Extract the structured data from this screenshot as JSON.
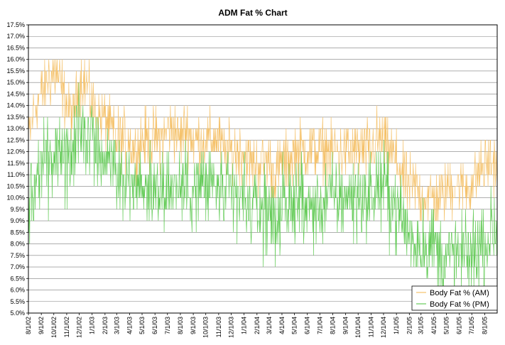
{
  "chart_data": {
    "type": "line",
    "title": "ADM Fat % Chart",
    "xlabel": "",
    "ylabel": "",
    "ylim": [
      5.0,
      17.5
    ],
    "y_ticks": [
      "5.0%",
      "5.5%",
      "6.0%",
      "6.5%",
      "7.0%",
      "7.5%",
      "8.0%",
      "8.5%",
      "9.0%",
      "9.5%",
      "10.0%",
      "10.5%",
      "11.0%",
      "11.5%",
      "12.0%",
      "12.5%",
      "13.0%",
      "13.5%",
      "14.0%",
      "14.5%",
      "15.0%",
      "15.5%",
      "16.0%",
      "16.5%",
      "17.0%",
      "17.5%"
    ],
    "x_ticks": [
      "8/1/02",
      "9/1/02",
      "10/1/02",
      "11/1/02",
      "12/1/02",
      "1/1/03",
      "2/1/03",
      "3/1/03",
      "4/1/03",
      "5/1/03",
      "6/1/03",
      "7/1/03",
      "8/1/03",
      "9/1/03",
      "10/1/03",
      "11/1/03",
      "12/1/03",
      "1/1/04",
      "2/1/04",
      "3/1/04",
      "4/1/04",
      "5/1/04",
      "6/1/04",
      "7/1/04",
      "8/1/04",
      "9/1/04",
      "10/1/04",
      "11/1/04",
      "12/1/04",
      "1/1/05",
      "2/1/05",
      "3/1/05",
      "4/1/05",
      "5/1/05",
      "6/1/05",
      "7/1/05",
      "8/1/05"
    ],
    "x_range": [
      "8/1/02",
      "8/31/05"
    ],
    "grid": true,
    "legend_position": "bottom-right",
    "series": [
      {
        "name": "Body Fat % (AM)",
        "color": "#f5c26b",
        "points": [
          [
            "8/1/02",
            12.5
          ],
          [
            "8/15/02",
            14.0
          ],
          [
            "9/1/02",
            14.5
          ],
          [
            "9/15/02",
            15.0
          ],
          [
            "10/1/02",
            15.5
          ],
          [
            "10/15/02",
            15.0
          ],
          [
            "11/1/02",
            14.0
          ],
          [
            "11/15/02",
            13.5
          ],
          [
            "12/1/02",
            15.0
          ],
          [
            "12/15/02",
            15.0
          ],
          [
            "1/1/03",
            14.0
          ],
          [
            "1/15/03",
            13.5
          ],
          [
            "2/1/03",
            13.5
          ],
          [
            "2/15/03",
            13.0
          ],
          [
            "3/1/03",
            12.5
          ],
          [
            "3/15/03",
            12.5
          ],
          [
            "4/1/03",
            12.5
          ],
          [
            "4/15/03",
            12.0
          ],
          [
            "5/1/03",
            12.5
          ],
          [
            "5/15/03",
            12.5
          ],
          [
            "6/1/03",
            12.5
          ],
          [
            "6/15/03",
            12.5
          ],
          [
            "7/1/03",
            13.0
          ],
          [
            "7/15/03",
            13.0
          ],
          [
            "8/1/03",
            12.5
          ],
          [
            "8/15/03",
            13.0
          ],
          [
            "9/1/03",
            12.5
          ],
          [
            "9/15/03",
            12.5
          ],
          [
            "10/1/03",
            12.5
          ],
          [
            "10/15/03",
            12.5
          ],
          [
            "11/1/03",
            12.5
          ],
          [
            "11/15/03",
            12.0
          ],
          [
            "12/1/03",
            12.0
          ],
          [
            "12/15/03",
            12.0
          ],
          [
            "1/1/04",
            12.0
          ],
          [
            "1/15/04",
            11.5
          ],
          [
            "2/1/04",
            11.5
          ],
          [
            "2/15/04",
            11.5
          ],
          [
            "3/1/04",
            11.5
          ],
          [
            "3/15/04",
            11.0
          ],
          [
            "4/1/04",
            11.5
          ],
          [
            "4/15/04",
            11.5
          ],
          [
            "5/1/04",
            12.0
          ],
          [
            "5/15/04",
            12.0
          ],
          [
            "6/1/04",
            12.0
          ],
          [
            "6/15/04",
            12.0
          ],
          [
            "7/1/04",
            12.0
          ],
          [
            "7/15/04",
            12.0
          ],
          [
            "8/1/04",
            12.0
          ],
          [
            "8/15/04",
            12.0
          ],
          [
            "9/1/04",
            12.0
          ],
          [
            "9/15/04",
            12.0
          ],
          [
            "10/1/04",
            12.0
          ],
          [
            "10/15/04",
            12.0
          ],
          [
            "11/1/04",
            12.0
          ],
          [
            "11/15/04",
            12.5
          ],
          [
            "12/1/04",
            12.5
          ],
          [
            "12/15/04",
            12.0
          ],
          [
            "1/1/05",
            11.5
          ],
          [
            "1/15/05",
            11.0
          ],
          [
            "2/1/05",
            10.5
          ],
          [
            "2/15/05",
            10.5
          ],
          [
            "3/1/05",
            10.0
          ],
          [
            "3/15/05",
            10.0
          ],
          [
            "4/1/05",
            10.0
          ],
          [
            "4/15/05",
            10.0
          ],
          [
            "5/1/05",
            10.5
          ],
          [
            "5/15/05",
            10.5
          ],
          [
            "6/1/05",
            10.5
          ],
          [
            "6/15/05",
            10.5
          ],
          [
            "7/1/05",
            10.5
          ],
          [
            "7/15/05",
            11.0
          ],
          [
            "8/1/05",
            11.5
          ],
          [
            "8/15/05",
            11.5
          ],
          [
            "8/31/05",
            11.5
          ]
        ],
        "noise": 0.8
      },
      {
        "name": "Body Fat % (PM)",
        "color": "#66cc5a",
        "points": [
          [
            "8/1/02",
            9.5
          ],
          [
            "8/15/02",
            10.5
          ],
          [
            "9/1/02",
            11.5
          ],
          [
            "9/15/02",
            11.5
          ],
          [
            "10/1/02",
            12.0
          ],
          [
            "10/15/02",
            12.0
          ],
          [
            "11/1/02",
            11.5
          ],
          [
            "11/15/02",
            12.0
          ],
          [
            "12/1/02",
            13.0
          ],
          [
            "12/15/02",
            13.0
          ],
          [
            "1/1/03",
            12.5
          ],
          [
            "1/15/03",
            12.0
          ],
          [
            "2/1/03",
            12.0
          ],
          [
            "2/15/03",
            11.5
          ],
          [
            "3/1/03",
            11.0
          ],
          [
            "3/15/03",
            11.0
          ],
          [
            "4/1/03",
            10.5
          ],
          [
            "4/15/03",
            10.5
          ],
          [
            "5/1/03",
            10.5
          ],
          [
            "5/15/03",
            10.5
          ],
          [
            "6/1/03",
            10.5
          ],
          [
            "6/15/03",
            10.5
          ],
          [
            "7/1/03",
            10.5
          ],
          [
            "7/15/03",
            10.5
          ],
          [
            "8/1/03",
            10.5
          ],
          [
            "8/15/03",
            10.5
          ],
          [
            "9/1/03",
            10.5
          ],
          [
            "9/15/03",
            10.5
          ],
          [
            "10/1/03",
            10.5
          ],
          [
            "10/15/03",
            10.5
          ],
          [
            "11/1/03",
            10.5
          ],
          [
            "11/15/03",
            10.0
          ],
          [
            "12/1/03",
            10.0
          ],
          [
            "12/15/03",
            10.0
          ],
          [
            "1/1/04",
            10.0
          ],
          [
            "1/15/04",
            9.5
          ],
          [
            "2/1/04",
            9.5
          ],
          [
            "2/15/04",
            9.5
          ],
          [
            "3/1/04",
            9.5
          ],
          [
            "3/15/04",
            9.0
          ],
          [
            "4/1/04",
            9.5
          ],
          [
            "4/15/04",
            9.5
          ],
          [
            "5/1/04",
            10.0
          ],
          [
            "5/15/04",
            10.0
          ],
          [
            "6/1/04",
            9.5
          ],
          [
            "6/15/04",
            9.5
          ],
          [
            "7/1/04",
            9.5
          ],
          [
            "7/15/04",
            10.0
          ],
          [
            "8/1/04",
            10.0
          ],
          [
            "8/15/04",
            10.0
          ],
          [
            "9/1/04",
            10.0
          ],
          [
            "9/15/04",
            10.0
          ],
          [
            "10/1/04",
            10.0
          ],
          [
            "10/15/04",
            10.0
          ],
          [
            "11/1/04",
            10.0
          ],
          [
            "11/15/04",
            10.5
          ],
          [
            "12/1/04",
            10.5
          ],
          [
            "12/15/04",
            10.0
          ],
          [
            "1/1/05",
            9.5
          ],
          [
            "1/15/05",
            9.0
          ],
          [
            "2/1/05",
            8.5
          ],
          [
            "2/15/05",
            8.0
          ],
          [
            "3/1/05",
            8.0
          ],
          [
            "3/15/05",
            8.0
          ],
          [
            "4/1/05",
            8.0
          ],
          [
            "4/15/05",
            7.5
          ],
          [
            "5/1/05",
            7.5
          ],
          [
            "5/15/05",
            7.5
          ],
          [
            "6/1/05",
            7.5
          ],
          [
            "6/15/05",
            7.5
          ],
          [
            "7/1/05",
            7.5
          ],
          [
            "7/15/05",
            8.0
          ],
          [
            "8/1/05",
            8.0
          ],
          [
            "8/15/05",
            8.5
          ],
          [
            "8/31/05",
            8.5
          ]
        ],
        "noise": 1.1
      }
    ]
  }
}
